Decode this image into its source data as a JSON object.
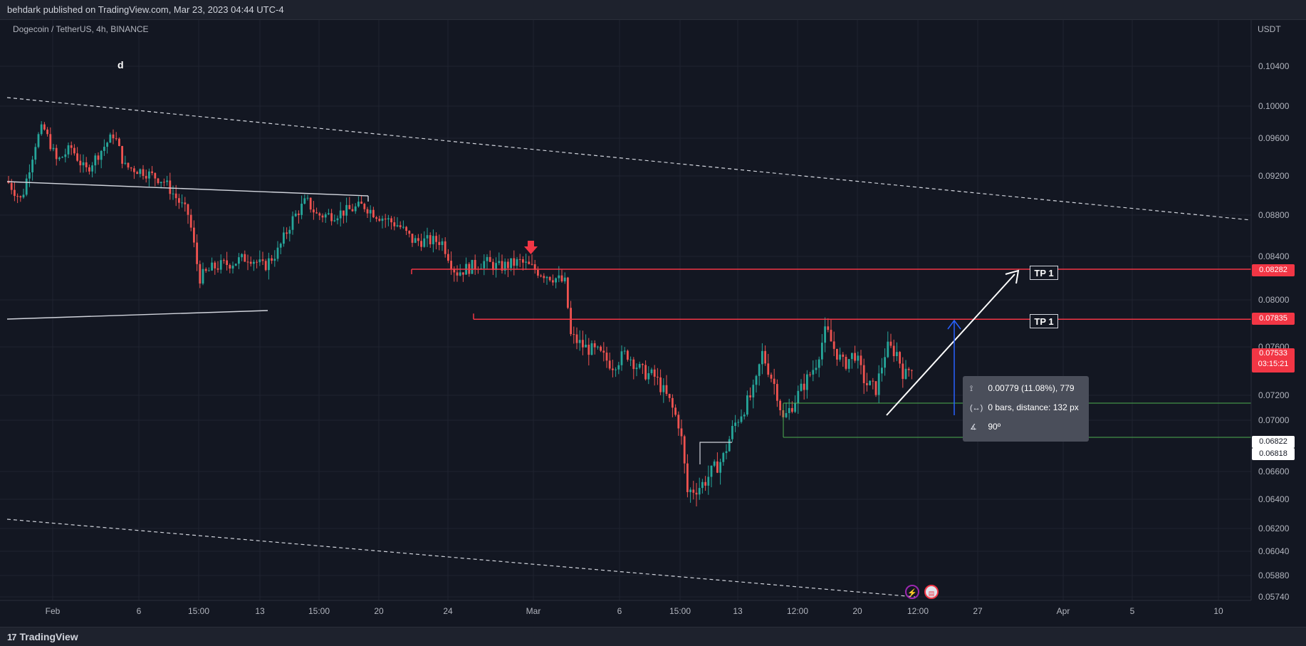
{
  "header": {
    "published_by": "behdark published on TradingView.com, Mar 23, 2023 04:44 UTC-4"
  },
  "symbol": {
    "description": "Dogecoin / TetherUS, 4h, BINANCE"
  },
  "currency": "USDT",
  "annotation": "d",
  "footer": {
    "brand": "TradingView",
    "logo_mark": "17"
  },
  "chart_data": {
    "type": "candlestick",
    "y_axis": {
      "ticks": [
        0.104,
        0.1,
        0.096,
        0.092,
        0.088,
        0.084,
        0.08,
        0.076,
        0.072,
        0.07,
        0.066,
        0.064,
        0.062,
        0.0604,
        0.0588,
        0.0574
      ],
      "tick_labels": [
        "0.10400",
        "0.10000",
        "0.09600",
        "0.09200",
        "0.08800",
        "0.08400",
        "0.08000",
        "0.07600",
        "0.07200",
        "0.07000",
        "0.06600",
        "0.06400",
        "0.06200",
        "0.06040",
        "0.05880",
        "0.05740"
      ]
    },
    "x_axis": {
      "tick_labels": [
        "Feb",
        "6",
        "15:00",
        "13",
        "15:00",
        "20",
        "24",
        "Mar",
        "6",
        "15:00",
        "13",
        "12:00",
        "20",
        "12:00",
        "27",
        "Apr",
        "5",
        "10"
      ]
    },
    "price_tags": [
      {
        "value": "0.08282",
        "style": "red"
      },
      {
        "value": "0.07835",
        "style": "red"
      },
      {
        "value": "0.07533",
        "style": "red",
        "countdown": "03:15:21"
      },
      {
        "value": "0.06822",
        "style": "white"
      },
      {
        "value": "0.06818",
        "style": "white"
      }
    ],
    "horizontal_levels": [
      {
        "price": 0.08282,
        "label": "TP 1",
        "color": "#f23645"
      },
      {
        "price": 0.07835,
        "label": "TP 1",
        "color": "#f23645"
      }
    ],
    "measure_tool": {
      "price_range": "0.00779 (11.08%), 779",
      "bars_distance": "0 bars, distance: 132 px",
      "angle": "90º"
    },
    "colors": {
      "up": "#26a69a",
      "down": "#ef5350",
      "level": "#f23645",
      "zone": "#4caf50",
      "arrow_blue": "#2962ff",
      "background": "#131722"
    }
  }
}
